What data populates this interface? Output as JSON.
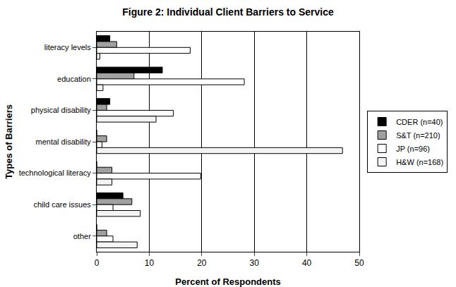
{
  "chart_data": {
    "type": "bar",
    "orientation": "horizontal",
    "title": "Figure 2: Individual Client Barriers to Service",
    "x_label": "Percent of Respondents",
    "y_label": "Types of Barriers",
    "categories": [
      "literacy levels",
      "education",
      "physical disability",
      "mental disability",
      "technological literacy",
      "child care issues",
      "other"
    ],
    "series": [
      {
        "name": "CDER (n=40)",
        "color": "#000000",
        "values": [
          2.5,
          12.5,
          2.5,
          0,
          0,
          5.0,
          0
        ]
      },
      {
        "name": "S&T (n=210)",
        "color": "#a0a0a0",
        "values": [
          3.8,
          7.1,
          1.9,
          1.9,
          2.9,
          6.7,
          1.9
        ]
      },
      {
        "name": "JP (n=96)",
        "color": "#ffffff",
        "values": [
          17.8,
          28.1,
          14.6,
          1.0,
          19.8,
          3.1,
          3.1
        ]
      },
      {
        "name": "H&W (n=168)",
        "color": "#f4f4f4",
        "values": [
          0.6,
          1.2,
          11.3,
          46.8,
          2.9,
          8.3,
          7.7
        ]
      }
    ],
    "xlim": [
      0,
      50
    ],
    "xticks": [
      0,
      10,
      20,
      30,
      40,
      50
    ],
    "grid": true,
    "legend": "right"
  }
}
